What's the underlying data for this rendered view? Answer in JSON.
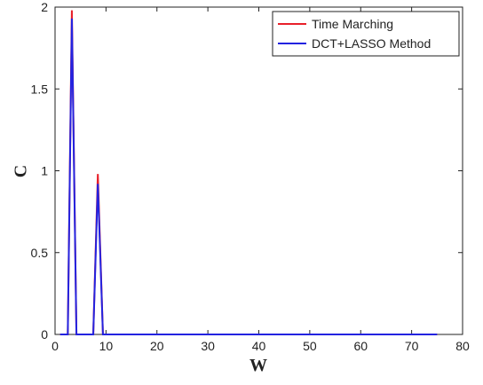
{
  "chart_data": {
    "type": "line",
    "xlabel": "W",
    "ylabel": "C",
    "x": [
      1,
      2.5,
      3.3,
      4.2,
      7.5,
      8.4,
      9.4,
      75
    ],
    "series": [
      {
        "name": "Time Marching",
        "color": "#e8202a",
        "values": [
          0,
          0,
          1.98,
          0,
          0,
          0.98,
          0,
          0
        ]
      },
      {
        "name": "DCT+LASSO Method",
        "color": "#2323e0",
        "values": [
          0,
          0,
          1.93,
          0,
          0,
          0.92,
          0,
          0
        ]
      }
    ],
    "xlim": [
      0,
      80
    ],
    "xticks": [
      0,
      10,
      20,
      30,
      40,
      50,
      60,
      70,
      80
    ],
    "ylim": [
      0,
      2
    ],
    "yticks": [
      0,
      0.5,
      1,
      1.5,
      2
    ],
    "grid": false,
    "legend": "top-right"
  }
}
